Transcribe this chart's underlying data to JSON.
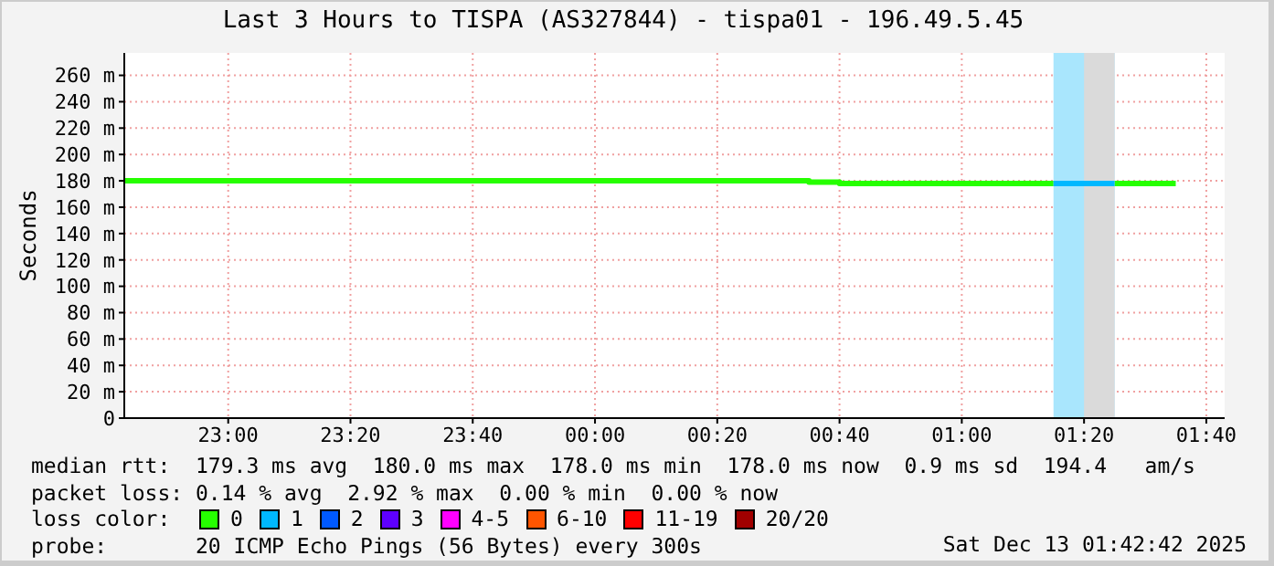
{
  "chart_data": {
    "type": "step",
    "title": "Last 3 Hours to TISPA (AS327844) - tispa01 - 196.49.5.45",
    "ylabel": "Seconds",
    "legend_title": "loss color:",
    "xlim": [
      "2025-12-12T22:43",
      "2025-12-13T01:43"
    ],
    "xticks": [
      {
        "value": "2025-12-12T23:00",
        "label": "23:00"
      },
      {
        "value": "2025-12-12T23:20",
        "label": "23:20"
      },
      {
        "value": "2025-12-12T23:40",
        "label": "23:40"
      },
      {
        "value": "2025-12-13T00:00",
        "label": "00:00"
      },
      {
        "value": "2025-12-13T00:20",
        "label": "00:20"
      },
      {
        "value": "2025-12-13T00:40",
        "label": "00:40"
      },
      {
        "value": "2025-12-13T01:00",
        "label": "01:00"
      },
      {
        "value": "2025-12-13T01:20",
        "label": "01:20"
      },
      {
        "value": "2025-12-13T01:40",
        "label": "01:40"
      }
    ],
    "ylim": [
      0,
      277
    ],
    "yticks": [
      0,
      {
        "value": 20,
        "label": "20 m"
      },
      {
        "value": 40,
        "label": "40 m"
      },
      {
        "value": 60,
        "label": "60 m"
      },
      {
        "value": 80,
        "label": "80 m"
      },
      {
        "value": 100,
        "label": "100 m"
      },
      {
        "value": 120,
        "label": "120 m"
      },
      {
        "value": 140,
        "label": "140 m"
      },
      {
        "value": 160,
        "label": "160 m"
      },
      {
        "value": 180,
        "label": "180 m"
      },
      {
        "value": 200,
        "label": "200 m"
      },
      {
        "value": 220,
        "label": "220 m"
      },
      {
        "value": 240,
        "label": "240 m"
      },
      {
        "value": 260,
        "label": "260 m"
      }
    ],
    "grid": true,
    "legend": "bottom",
    "bands": [
      {
        "axis": "x",
        "from": "2025-12-13T01:15",
        "to": "2025-12-13T01:25",
        "color": "#a9e6fd"
      },
      {
        "axis": "x",
        "from": "2025-12-13T01:20",
        "to": "2025-12-13T01:25",
        "color": "#dadada"
      }
    ],
    "series": [
      {
        "name": "0",
        "color": "#26ff00",
        "x": [
          "2025-12-12T22:43",
          "2025-12-13T00:35",
          "2025-12-13T00:40",
          "2025-12-13T01:15",
          "2025-12-13T01:20",
          "2025-12-13T01:25",
          "2025-12-13T01:35"
        ],
        "values": [
          180,
          179,
          178,
          178,
          null,
          178,
          178
        ]
      },
      {
        "name": "1",
        "color": "#00b8ff",
        "x": [
          "2025-12-13T01:15",
          "2025-12-13T01:25"
        ],
        "values": [
          178,
          178
        ]
      },
      {
        "name": "2",
        "color": "#0059ff"
      },
      {
        "name": "3",
        "color": "#5e00ff"
      },
      {
        "name": "4-5",
        "color": "#ff00ff"
      },
      {
        "name": "6-10",
        "color": "#ff5500"
      },
      {
        "name": "11-19",
        "color": "#ff0000"
      },
      {
        "name": "20/20",
        "color": "#a10000"
      }
    ],
    "annotations": [
      "median rtt:  179.3 ms avg  180.0 ms max  178.0 ms min  178.0 ms now  0.9 ms sd  194.4   am/s",
      "packet loss: 0.14 % avg  2.92 % max  0.00 % min  0.00 % now",
      "probe:       20 ICMP Echo Pings (56 Bytes) every 300s",
      "Sat Dec 13 01:42:42 2025"
    ]
  }
}
